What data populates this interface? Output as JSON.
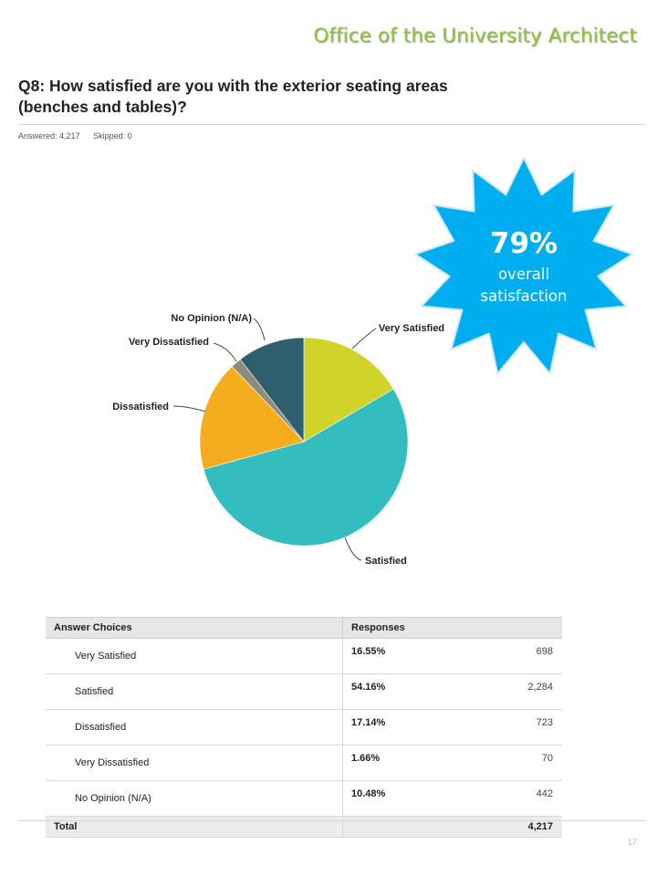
{
  "header": {
    "title": "Office of the University Architect"
  },
  "question": {
    "line1": "Q8: How satisfied are you with the exterior seating areas",
    "line2": "(benches and tables)?",
    "answered": "Answered: 4,217",
    "skipped": "Skipped: 0"
  },
  "badge": {
    "percent": "79%",
    "line1": "overall",
    "line2": "satisfaction",
    "color": "#00aeef"
  },
  "chart_data": {
    "type": "pie",
    "title": "",
    "slices": [
      {
        "label": "Very Satisfied",
        "value": 16.55,
        "color": "#d0d42a"
      },
      {
        "label": "Satisfied",
        "value": 54.16,
        "color": "#33bdbf"
      },
      {
        "label": "Dissatisfied",
        "value": 17.14,
        "color": "#f5ac1f"
      },
      {
        "label": "Very Dissatisfied",
        "value": 1.66,
        "color": "#8c8c7c"
      },
      {
        "label": "No Opinion (N/A)",
        "value": 10.48,
        "color": "#2d5f6e"
      }
    ]
  },
  "table": {
    "headers": [
      "Answer Choices",
      "Responses"
    ],
    "rows": [
      {
        "choice": "Very Satisfied",
        "percent": "16.55%",
        "count": "698"
      },
      {
        "choice": "Satisfied",
        "percent": "54.16%",
        "count": "2,284"
      },
      {
        "choice": "Dissatisfied",
        "percent": "17.14%",
        "count": "723"
      },
      {
        "choice": "Very Dissatisfied",
        "percent": "1.66%",
        "count": "70"
      },
      {
        "choice": "No Opinion (N/A)",
        "percent": "10.48%",
        "count": "442"
      }
    ],
    "total_label": "Total",
    "total_value": "4,217"
  },
  "page_number": "17"
}
